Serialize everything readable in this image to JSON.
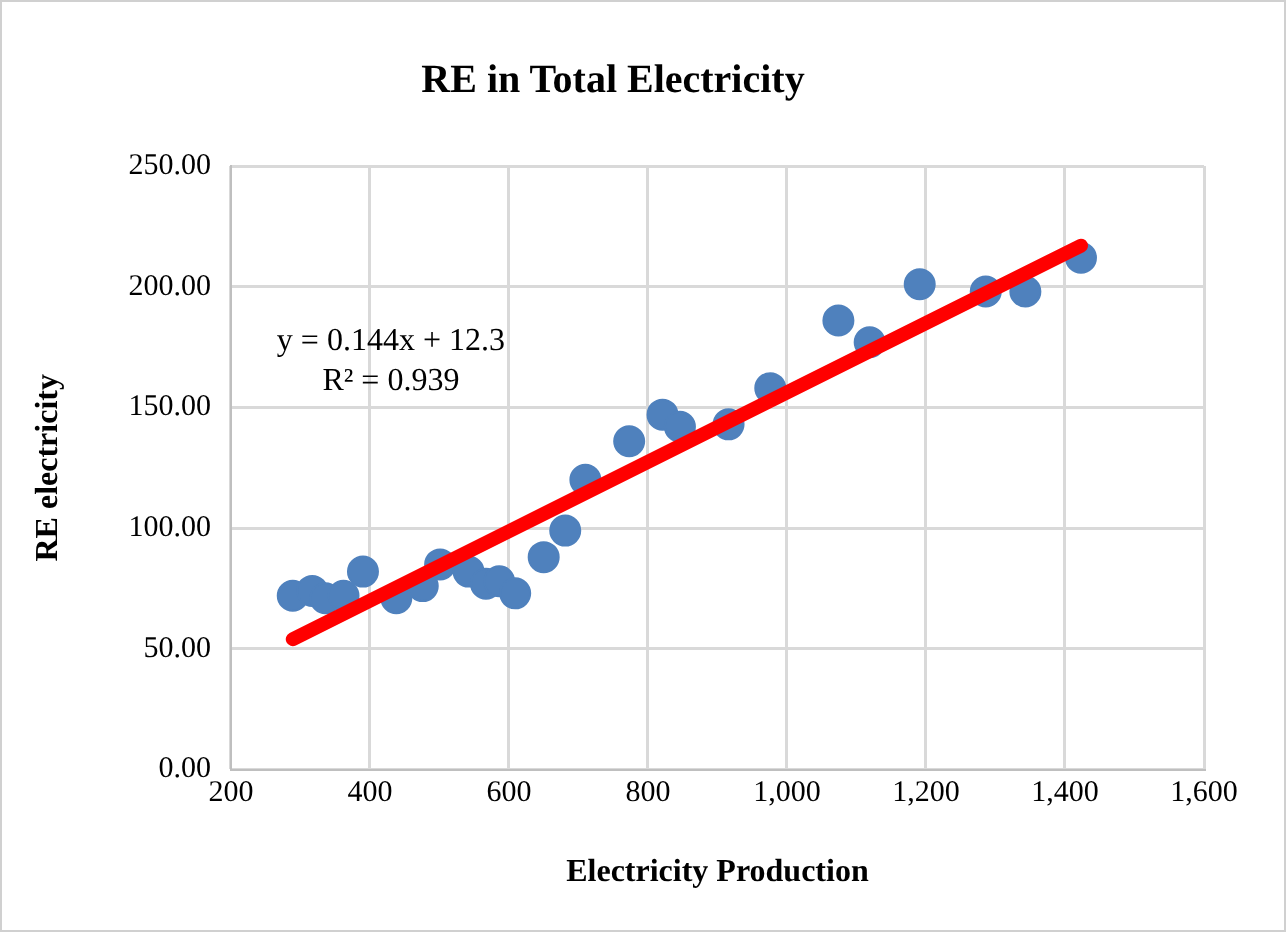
{
  "chart_data": {
    "type": "scatter",
    "title": "RE in Total Electricity",
    "xlabel": "Electricity Production",
    "ylabel": "RE electricity",
    "xlim": [
      200,
      1600
    ],
    "xticks": [
      {
        "value": 200,
        "label": "200"
      },
      {
        "value": 400,
        "label": "400"
      },
      {
        "value": 600,
        "label": "600"
      },
      {
        "value": 800,
        "label": "800"
      },
      {
        "value": 1000,
        "label": "1,000"
      },
      {
        "value": 1200,
        "label": "1,200"
      },
      {
        "value": 1400,
        "label": "1,400"
      },
      {
        "value": 1600,
        "label": "1,600"
      }
    ],
    "ylim": [
      0,
      250
    ],
    "yticks": [
      {
        "value": 0,
        "label": "0.00"
      },
      {
        "value": 50,
        "label": "50.00"
      },
      {
        "value": 100,
        "label": "100.00"
      },
      {
        "value": 150,
        "label": "150.00"
      },
      {
        "value": 200,
        "label": "200.00"
      },
      {
        "value": 250,
        "label": "250.00"
      }
    ],
    "grid": true,
    "marker": "circle",
    "series": [
      {
        "color": "#4f81bd",
        "x": [
          289,
          317,
          336,
          362,
          390,
          438,
          476,
          501,
          542,
          567,
          586,
          609,
          650,
          681,
          710,
          773,
          821,
          846,
          916,
          976,
          1074,
          1119,
          1191,
          1286,
          1343,
          1423
        ],
        "values": [
          72,
          74,
          71,
          72,
          82,
          71,
          76,
          85,
          82,
          77,
          78,
          73,
          88,
          99,
          120,
          136,
          147,
          142,
          143,
          158,
          186,
          177,
          201,
          198,
          198,
          212
        ]
      },
      {
        "type": "line",
        "color": "#ff0000",
        "marker": "none",
        "x": [
          289,
          1423
        ],
        "values": [
          54,
          217
        ]
      }
    ],
    "annotations": [
      "y = 0.144x + 12.3",
      "R² = 0.939"
    ]
  }
}
